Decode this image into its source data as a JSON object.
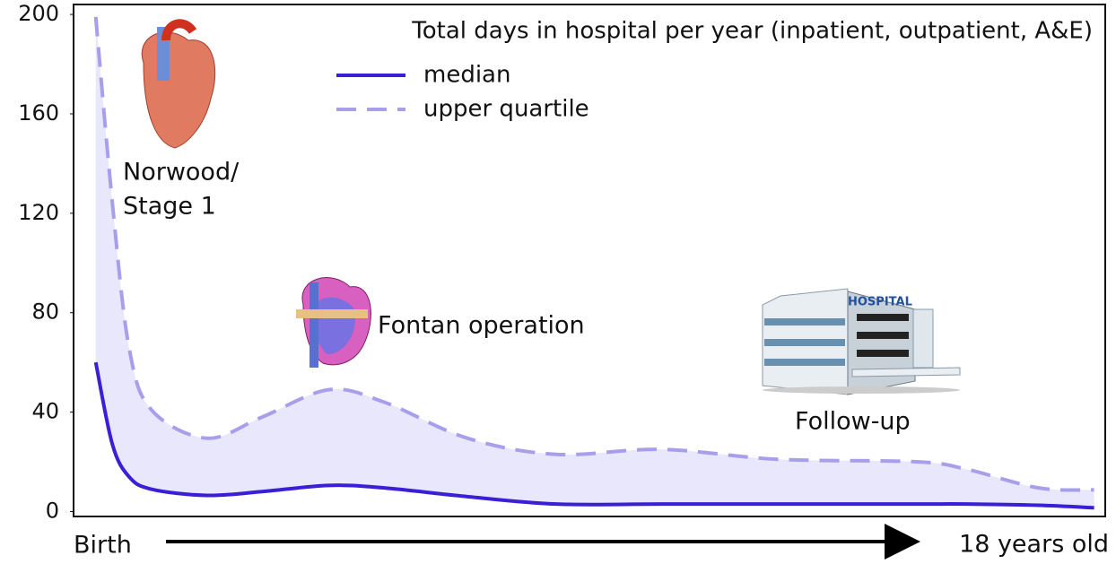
{
  "chart_data": {
    "type": "line",
    "legend_title": "Total days in hospital per year (inpatient, outpatient, A&E)",
    "legend_position": "upper right",
    "x_start_label": "Birth",
    "x_end_label": "18 years old",
    "x": [
      0,
      0.3,
      0.6,
      1,
      2,
      3,
      4.2,
      5.2,
      6.7,
      8.3,
      10.2,
      12.3,
      14.8,
      15.7,
      17,
      18
    ],
    "xlim": [
      -0.4,
      18.2
    ],
    "series": [
      {
        "name": "median",
        "color": "#3a1fd6",
        "style": "solid",
        "values": [
          60,
          27,
          14,
          9,
          6.5,
          8,
          10.5,
          9.5,
          6,
          3,
          3,
          3,
          3,
          3,
          2.5,
          1.5
        ]
      },
      {
        "name": "upper quartile",
        "color": "#a89fec",
        "style": "dashed",
        "values": [
          199,
          124,
          66,
          41,
          29.5,
          38,
          49,
          44,
          29.5,
          23,
          25,
          21,
          20,
          17,
          9.5,
          8.7
        ]
      }
    ],
    "fill_between_color": "#e9e7fb",
    "ylim": [
      -2,
      204
    ],
    "yticks": [
      0,
      40,
      80,
      120,
      160,
      200
    ],
    "grid": false,
    "annotations": [
      {
        "lines": [
          "Norwood/",
          "Stage 1"
        ]
      },
      {
        "lines": [
          "Fontan operation"
        ]
      },
      {
        "lines": [
          "Follow-up"
        ]
      }
    ]
  }
}
